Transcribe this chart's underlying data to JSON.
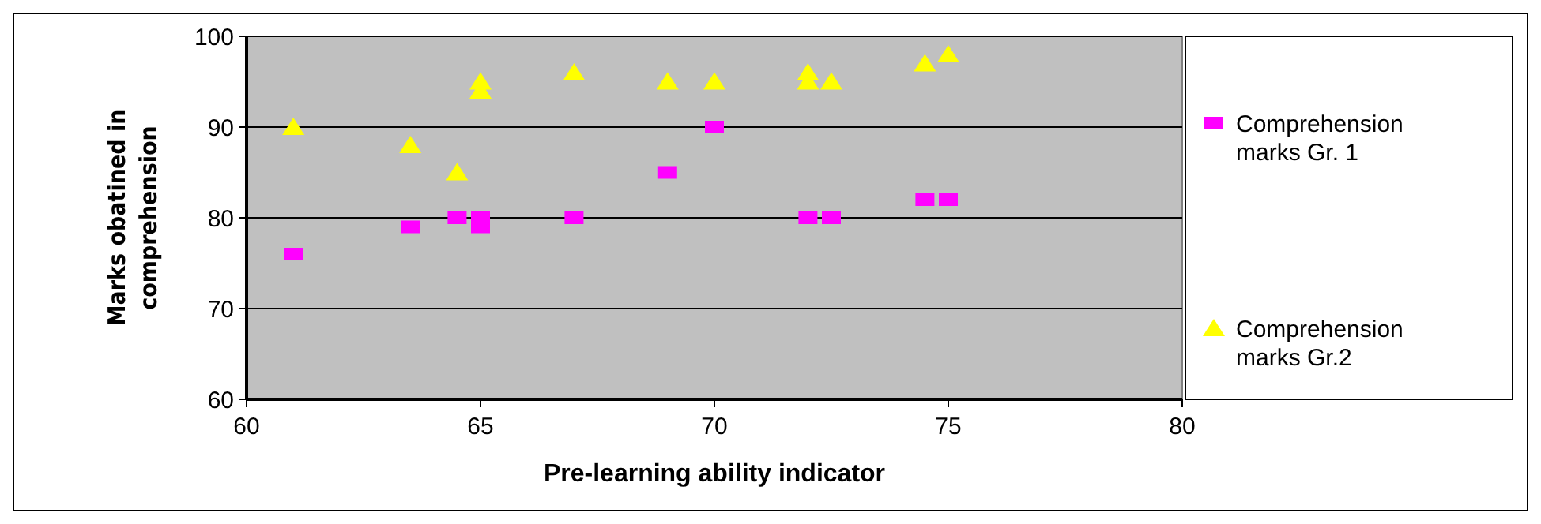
{
  "chart_data": {
    "type": "scatter",
    "xlabel": "Pre-learning ability indicator",
    "ylabel": "Marks obatined in comprehension",
    "xlim": [
      60,
      80
    ],
    "xticks": [
      60,
      65,
      70,
      75,
      80
    ],
    "ylim": [
      60,
      100
    ],
    "yticks": [
      60,
      70,
      80,
      90,
      100
    ],
    "grid": "y",
    "legend": "right",
    "series": [
      {
        "name": "Comprehension marks Gr. 1",
        "color": "#ff00ff",
        "marker": "square",
        "x": [
          61,
          63.5,
          64.5,
          65,
          65,
          67,
          69,
          70,
          72,
          72.5,
          74.5,
          75
        ],
        "values": [
          76,
          79,
          80,
          80,
          79,
          80,
          85,
          90,
          80,
          80,
          82,
          82
        ]
      },
      {
        "name": "Comprehension marks Gr.2",
        "color": "#ffff00",
        "marker": "triangle",
        "x": [
          61,
          63.5,
          64.5,
          65,
          65,
          67,
          69,
          70,
          72,
          72,
          72.5,
          74.5,
          75
        ],
        "values": [
          90,
          88,
          85,
          95,
          94,
          96,
          95,
          95,
          96,
          95,
          95,
          97,
          98
        ]
      }
    ]
  }
}
